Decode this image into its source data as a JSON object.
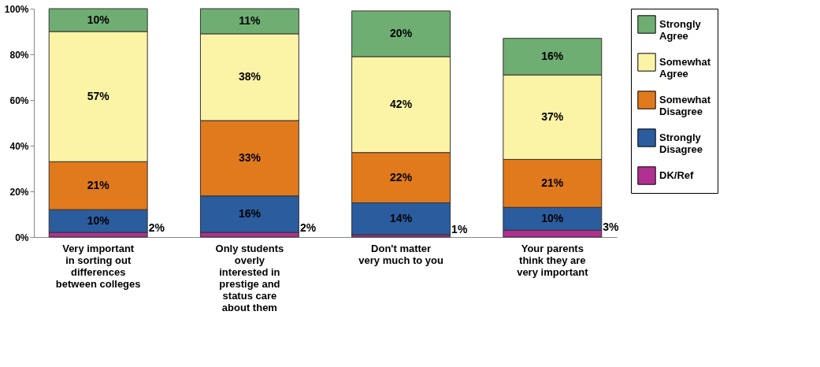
{
  "chart_data": {
    "type": "bar",
    "stacked": true,
    "categories": [
      "Very important in sorting out differences between colleges",
      "Only students overly interested in prestige and status care about them",
      "Don't matter very much to you",
      "Your parents think they are very important"
    ],
    "series": [
      {
        "name": "DK/Ref",
        "color": "#b0308f",
        "values": [
          2,
          2,
          1,
          3
        ],
        "value_labels": [
          "2%",
          "2%",
          "1%",
          "3%"
        ]
      },
      {
        "name": "Strongly Disagree",
        "color": "#2a5c9e",
        "values": [
          10,
          16,
          14,
          10
        ],
        "value_labels": [
          "10%",
          "16%",
          "14%",
          "10%"
        ]
      },
      {
        "name": "Somewhat Disagree",
        "color": "#e07a1c",
        "values": [
          21,
          33,
          22,
          21
        ],
        "value_labels": [
          "21%",
          "33%",
          "22%",
          "21%"
        ]
      },
      {
        "name": "Somewhat Agree",
        "color": "#fbf3a6",
        "values": [
          57,
          38,
          42,
          37
        ],
        "value_labels": [
          "57%",
          "38%",
          "42%",
          "37%"
        ]
      },
      {
        "name": "Strongly Agree",
        "color": "#6fae72",
        "values": [
          10,
          11,
          20,
          16
        ],
        "value_labels": [
          "10%",
          "11%",
          "20%",
          "16%"
        ]
      }
    ],
    "ylim": [
      0,
      100
    ],
    "yticks": [
      {
        "value": 0,
        "label": "0%"
      },
      {
        "value": 20,
        "label": "20%"
      },
      {
        "value": 40,
        "label": "40%"
      },
      {
        "value": 60,
        "label": "60%"
      },
      {
        "value": 80,
        "label": "80%"
      },
      {
        "value": 100,
        "label": "100%"
      }
    ],
    "grid": false,
    "legend": "top right"
  }
}
